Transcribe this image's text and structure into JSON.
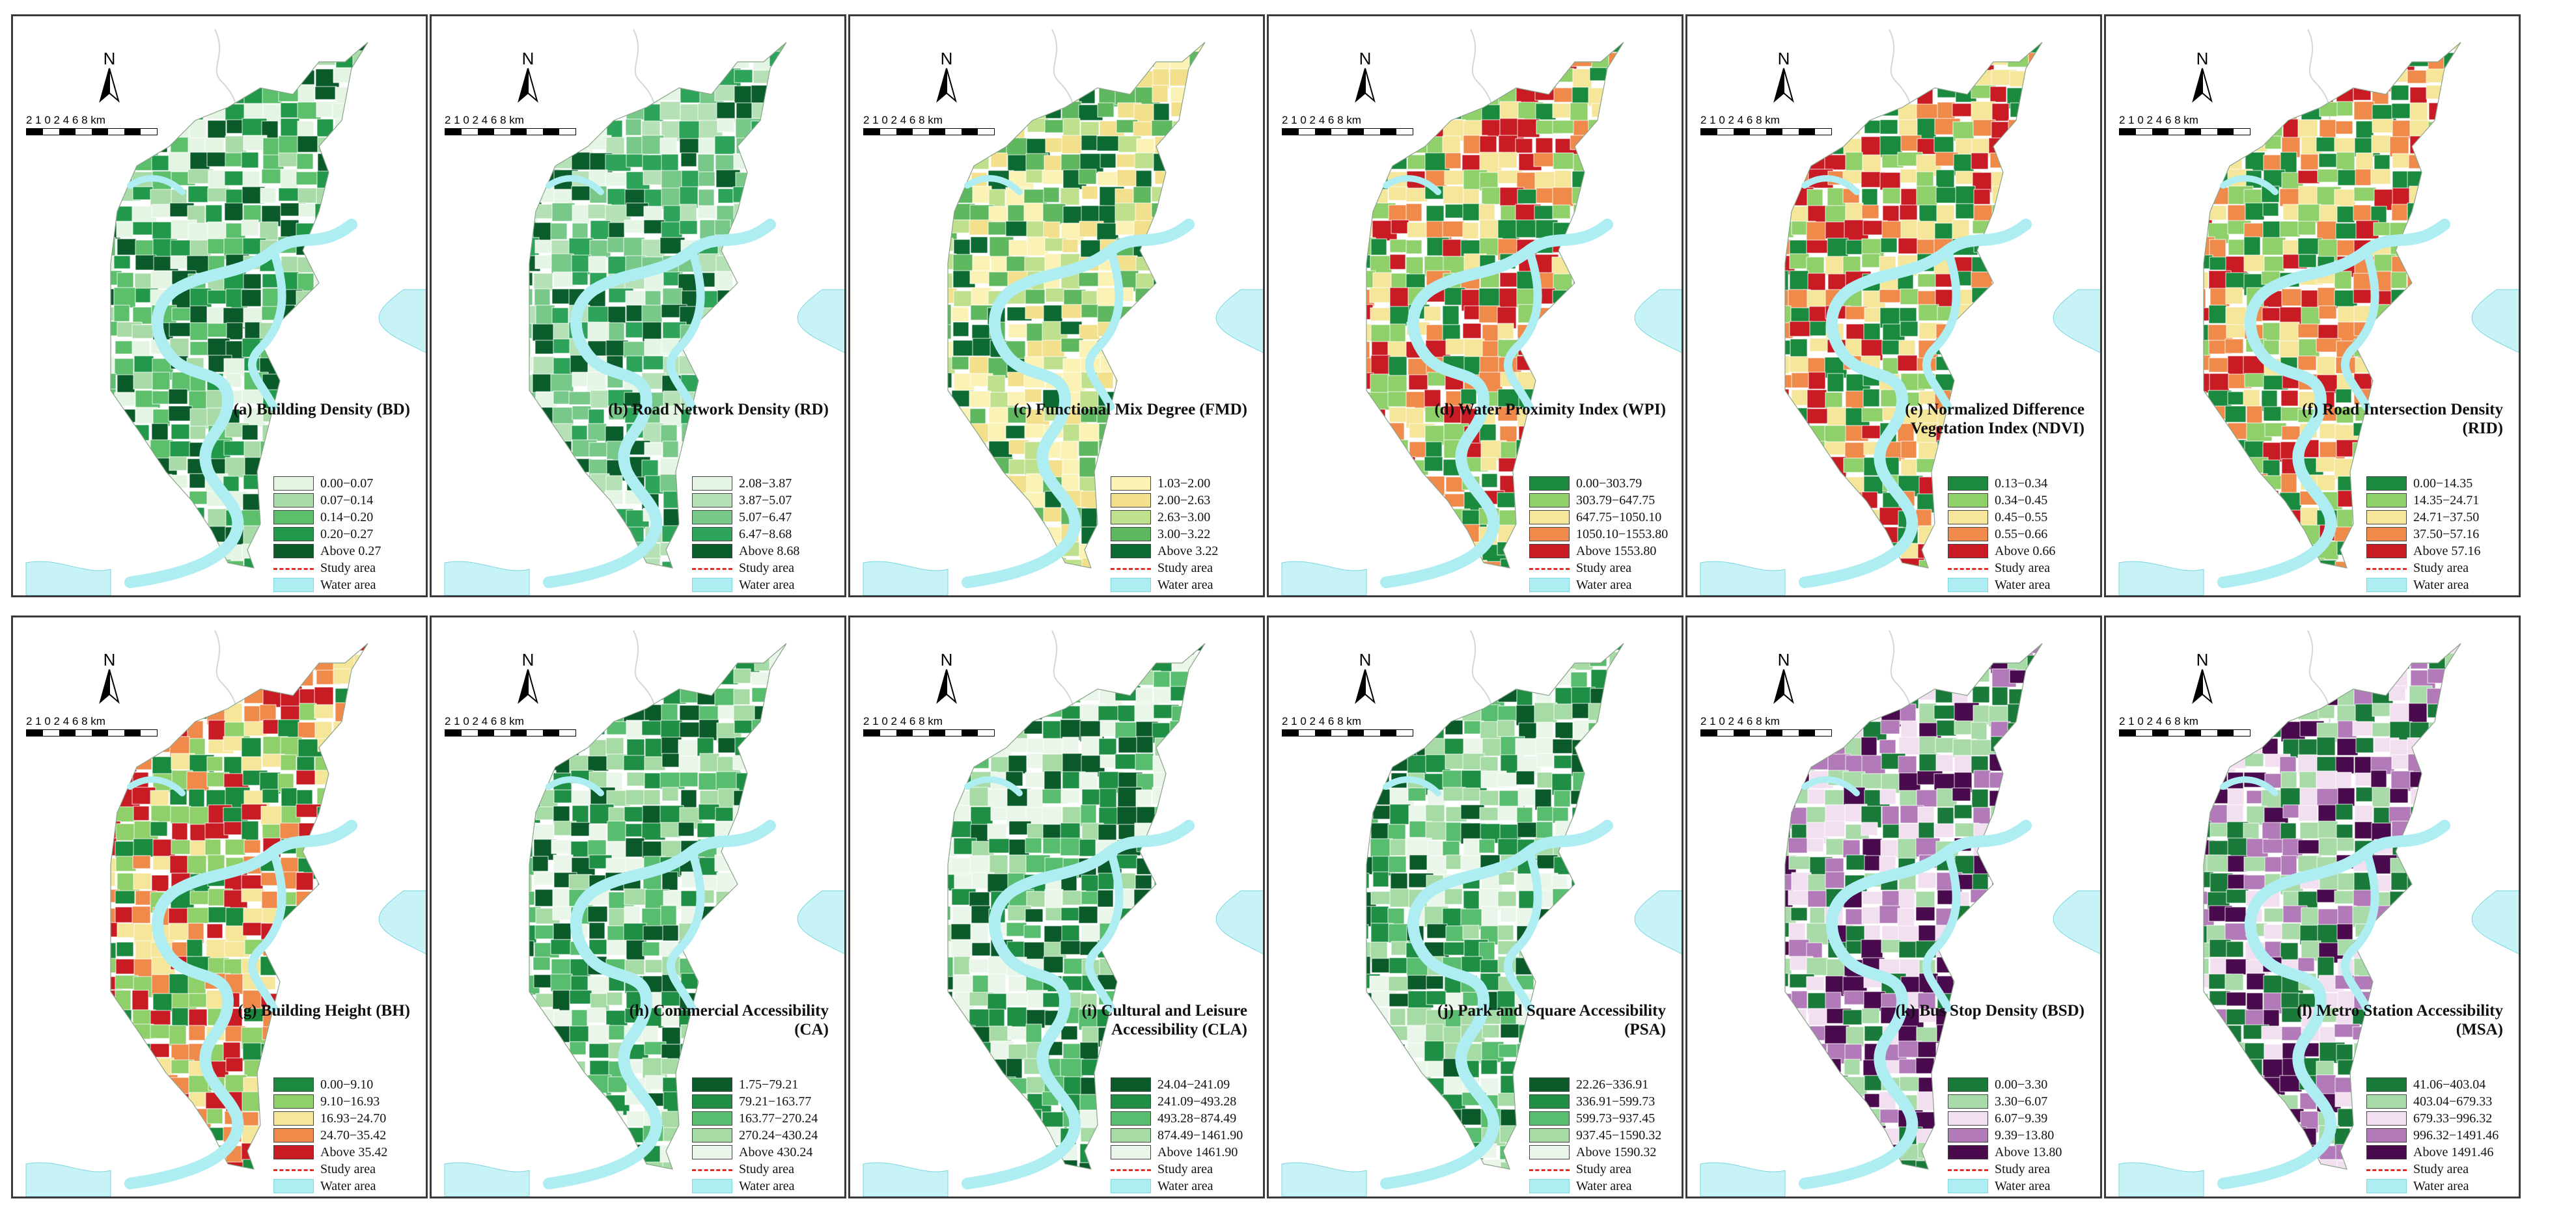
{
  "common": {
    "north_label": "N",
    "scale_numbers": "2 1 0   2   4   6   8",
    "scale_unit": "km",
    "study_area_label": "Study area",
    "water_area_label": "Water area"
  },
  "panels": [
    {
      "title": "(a) Building Density (BD)",
      "palette": [
        "#e4f5e4",
        "#a8dba8",
        "#5bbf6b",
        "#22994a",
        "#0a5a2a"
      ],
      "labels": [
        "0.00−0.07",
        "0.07−0.14",
        "0.14−0.20",
        "0.20−0.27",
        "Above 0.27"
      ]
    },
    {
      "title": "(b) Road Network Density (RD)",
      "palette": [
        "#e6f6e6",
        "#b6e1b6",
        "#78c88a",
        "#2ea35a",
        "#0b5d2c"
      ],
      "labels": [
        "2.08−3.87",
        "3.87−5.07",
        "5.07−6.47",
        "6.47−8.68",
        "Above 8.68"
      ]
    },
    {
      "title": "(c) Functional Mix Degree (FMD)",
      "palette": [
        "#fbf3b6",
        "#f3e08c",
        "#bfe08c",
        "#5fb760",
        "#0c6a32"
      ],
      "labels": [
        "1.03−2.00",
        "2.00−2.63",
        "2.63−3.00",
        "3.00−3.22",
        "Above 3.22"
      ]
    },
    {
      "title": "(d) Water Proximity Index (WPI)",
      "palette": [
        "#1a8a3e",
        "#8fd06a",
        "#f5e69a",
        "#f08a4b",
        "#c81b24"
      ],
      "labels": [
        "0.00−303.79",
        "303.79−647.75",
        "647.75−1050.10",
        "1050.10−1553.80",
        "Above 1553.80"
      ]
    },
    {
      "title": "(e) Normalized Difference Vegetation Index (NDVI)",
      "palette": [
        "#1a8a3e",
        "#8fd06a",
        "#f5e69a",
        "#f08a4b",
        "#c81b24"
      ],
      "labels": [
        "0.13−0.34",
        "0.34−0.45",
        "0.45−0.55",
        "0.55−0.66",
        "Above 0.66"
      ]
    },
    {
      "title": "(f) Road Intersection Density (RID)",
      "palette": [
        "#1a8a3e",
        "#8fd06a",
        "#f5e69a",
        "#f08a4b",
        "#c81b24"
      ],
      "labels": [
        "0.00−14.35",
        "14.35−24.71",
        "24.71−37.50",
        "37.50−57.16",
        "Above 57.16"
      ]
    },
    {
      "title": "(g) Building Height (BH)",
      "palette": [
        "#1a8a3e",
        "#8fd06a",
        "#f5e69a",
        "#f08a4b",
        "#c81b24"
      ],
      "labels": [
        "0.00−9.10",
        "9.10−16.93",
        "16.93−24.70",
        "24.70−35.42",
        "Above 35.42"
      ]
    },
    {
      "title": "(h) Commercial Accessibility (CA)",
      "palette": [
        "#0a5a2a",
        "#1f8f45",
        "#58bd6e",
        "#a6dba6",
        "#eaf6ea"
      ],
      "labels": [
        "1.75−79.21",
        "79.21−163.77",
        "163.77−270.24",
        "270.24−430.24",
        "Above 430.24"
      ]
    },
    {
      "title": "(i) Cultural and Leisure Accessibility (CLA)",
      "palette": [
        "#0a5a2a",
        "#1f8f45",
        "#58bd6e",
        "#a6dba6",
        "#eaf6ea"
      ],
      "labels": [
        "24.04−241.09",
        "241.09−493.28",
        "493.28−874.49",
        "874.49−1461.90",
        "Above 1461.90"
      ]
    },
    {
      "title": "(j) Park and Square Accessibility (PSA)",
      "palette": [
        "#0a5a2a",
        "#1f8f45",
        "#58bd6e",
        "#a6dba6",
        "#eaf6ea"
      ],
      "labels": [
        "22.26−336.91",
        "336.91−599.73",
        "599.73−937.45",
        "937.45−1590.32",
        "Above 1590.32"
      ]
    },
    {
      "title": "(k) Bus Stop Density (BSD)",
      "palette": [
        "#1a7a3a",
        "#a8dba8",
        "#f2dff0",
        "#b27ab8",
        "#4a0a4e"
      ],
      "labels": [
        "0.00−3.30",
        "3.30−6.07",
        "6.07−9.39",
        "9.39−13.80",
        "Above 13.80"
      ]
    },
    {
      "title": "(l) Metro Station Accessibility (MSA)",
      "palette": [
        "#1a7a3a",
        "#a8dba8",
        "#f2dff0",
        "#b27ab8",
        "#4a0a4e"
      ],
      "labels": [
        "41.06−403.04",
        "403.04−679.33",
        "679.33−996.32",
        "996.32−1491.46",
        "Above 1491.46"
      ]
    }
  ]
}
